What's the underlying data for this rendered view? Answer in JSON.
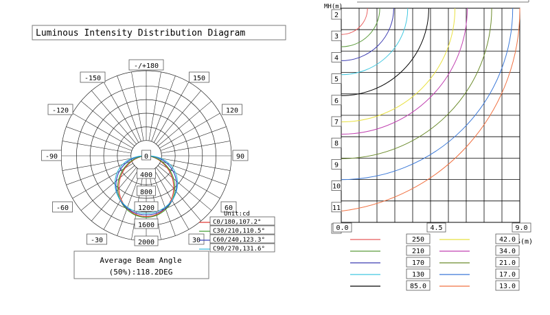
{
  "left_panel": {
    "title": "Luminous Intensity Distribution Diagram",
    "bottom_zero": "0",
    "beam_box": {
      "line1": "Average Beam Angle",
      "line2": "(50%):118.2DEG"
    }
  },
  "right_panel": {
    "header_text": "MH(m)",
    "x_axis_label": "S(m)"
  },
  "colors": {
    "c0": "#e0302a",
    "c30": "#3a9a2a",
    "c60": "#2a3ab8",
    "c90": "#30b8d8",
    "grid": "#000000",
    "iso_250": "#e85a5a",
    "iso_210": "#5a9a3a",
    "iso_170": "#3a3ab0",
    "iso_130": "#40c8e0",
    "iso_85": "#000000",
    "iso_42": "#e8e040",
    "iso_34": "#c040b0",
    "iso_21": "#6a8a2a",
    "iso_17": "#3a78d8",
    "iso_13": "#f07040"
  },
  "chart_data": [
    {
      "type": "polar",
      "title": "Luminous Intensity Distribution Diagram",
      "unit_label": "Unit:cd",
      "angle_labels": [
        "-/+180",
        "-150",
        "150",
        "-120",
        "120",
        "-90",
        "90",
        "-60",
        "60",
        "-30",
        "30"
      ],
      "radial_labels": [
        "0",
        "400",
        "800",
        "1200",
        "1600",
        "2000"
      ],
      "radial_max": 2000,
      "series": [
        {
          "name": "C0/180,107.2°",
          "color": "#e0302a",
          "peak": 1500,
          "beam_angle": 107.2
        },
        {
          "name": "C30/210,110.5°",
          "color": "#3a9a2a",
          "peak": 1520,
          "beam_angle": 110.5
        },
        {
          "name": "C60/240,123.3°",
          "color": "#2a3ab8",
          "peak": 1460,
          "beam_angle": 123.3
        },
        {
          "name": "C90/270,131.6°",
          "color": "#30b8d8",
          "peak": 1420,
          "beam_angle": 131.6
        }
      ],
      "average_beam_angle": "(50%):118.2DEG"
    },
    {
      "type": "isolux",
      "xlabel": "S(m)",
      "ylabel": "MH(m)",
      "x_ticks": [
        "0.0",
        "4.5",
        "9.0"
      ],
      "xlim": [
        0,
        9
      ],
      "y_ticks": [
        "2",
        "3",
        "4",
        "5",
        "6",
        "7",
        "8",
        "9",
        "10",
        "11",
        "12"
      ],
      "ylim": [
        2,
        12
      ],
      "legend": [
        {
          "value": "250",
          "color": "#e85a5a"
        },
        {
          "value": "210",
          "color": "#5a9a3a"
        },
        {
          "value": "170",
          "color": "#3a3ab0"
        },
        {
          "value": "130",
          "color": "#40c8e0"
        },
        {
          "value": "85.0",
          "color": "#000000"
        },
        {
          "value": "42.0",
          "color": "#e8e040"
        },
        {
          "value": "34.0",
          "color": "#c040b0"
        },
        {
          "value": "21.0",
          "color": "#6a8a2a"
        },
        {
          "value": "17.0",
          "color": "#3a78d8"
        },
        {
          "value": "13.0",
          "color": "#f07040"
        }
      ]
    }
  ]
}
